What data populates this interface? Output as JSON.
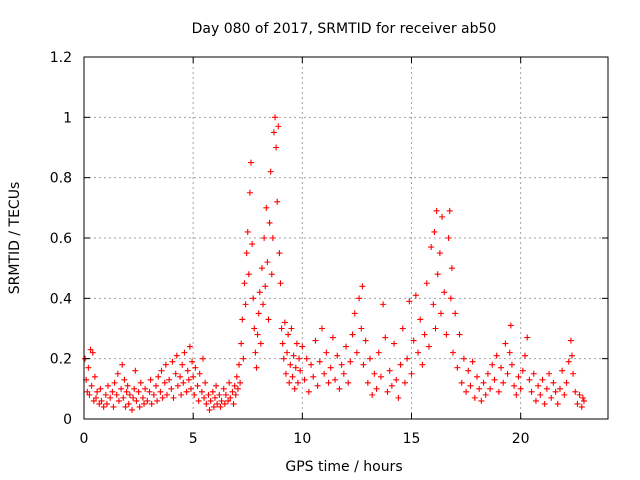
{
  "chart_data": {
    "type": "scatter",
    "title": "Day 080 of 2017, SRMTID for receiver ab50",
    "xlabel": "GPS time / hours",
    "ylabel": "SRMTID / TECUs",
    "xlim": [
      0,
      24
    ],
    "ylim": [
      0,
      1.2
    ],
    "xticks": [
      0,
      5,
      10,
      15,
      20
    ],
    "xtick_labels": [
      "0",
      "5",
      "10",
      "15",
      "20"
    ],
    "yticks": [
      0,
      0.2,
      0.4,
      0.6,
      0.8,
      1.0,
      1.2
    ],
    "ytick_labels": [
      "0",
      "0.2",
      "0.4",
      "0.6",
      "0.8",
      "1",
      "1.2"
    ],
    "grid": true,
    "marker": "+",
    "series": [
      {
        "name": "SRMTID",
        "color": "#ff0000",
        "points": [
          [
            0.05,
            0.2
          ],
          [
            0.1,
            0.13
          ],
          [
            0.15,
            0.09
          ],
          [
            0.2,
            0.17
          ],
          [
            0.25,
            0.08
          ],
          [
            0.3,
            0.23
          ],
          [
            0.35,
            0.11
          ],
          [
            0.4,
            0.22
          ],
          [
            0.45,
            0.06
          ],
          [
            0.5,
            0.14
          ],
          [
            0.55,
            0.07
          ],
          [
            0.6,
            0.09
          ],
          [
            0.7,
            0.05
          ],
          [
            0.75,
            0.1
          ],
          [
            0.8,
            0.06
          ],
          [
            0.9,
            0.04
          ],
          [
            1.0,
            0.08
          ],
          [
            1.05,
            0.05
          ],
          [
            1.1,
            0.11
          ],
          [
            1.2,
            0.07
          ],
          [
            1.3,
            0.09
          ],
          [
            1.35,
            0.04
          ],
          [
            1.4,
            0.12
          ],
          [
            1.5,
            0.08
          ],
          [
            1.55,
            0.15
          ],
          [
            1.6,
            0.06
          ],
          [
            1.7,
            0.1
          ],
          [
            1.75,
            0.18
          ],
          [
            1.8,
            0.07
          ],
          [
            1.85,
            0.13
          ],
          [
            1.9,
            0.04
          ],
          [
            1.95,
            0.09
          ],
          [
            2.0,
            0.11
          ],
          [
            2.05,
            0.05
          ],
          [
            2.1,
            0.08
          ],
          [
            2.2,
            0.03
          ],
          [
            2.25,
            0.07
          ],
          [
            2.3,
            0.1
          ],
          [
            2.35,
            0.16
          ],
          [
            2.4,
            0.06
          ],
          [
            2.5,
            0.09
          ],
          [
            2.55,
            0.04
          ],
          [
            2.6,
            0.12
          ],
          [
            2.7,
            0.07
          ],
          [
            2.75,
            0.05
          ],
          [
            2.8,
            0.1
          ],
          [
            2.9,
            0.06
          ],
          [
            3.0,
            0.09
          ],
          [
            3.05,
            0.13
          ],
          [
            3.1,
            0.05
          ],
          [
            3.2,
            0.08
          ],
          [
            3.3,
            0.11
          ],
          [
            3.35,
            0.06
          ],
          [
            3.4,
            0.14
          ],
          [
            3.5,
            0.09
          ],
          [
            3.55,
            0.16
          ],
          [
            3.6,
            0.07
          ],
          [
            3.7,
            0.12
          ],
          [
            3.75,
            0.18
          ],
          [
            3.8,
            0.08
          ],
          [
            3.9,
            0.13
          ],
          [
            4.0,
            0.1
          ],
          [
            4.05,
            0.19
          ],
          [
            4.1,
            0.07
          ],
          [
            4.2,
            0.15
          ],
          [
            4.25,
            0.21
          ],
          [
            4.3,
            0.11
          ],
          [
            4.4,
            0.14
          ],
          [
            4.45,
            0.08
          ],
          [
            4.5,
            0.18
          ],
          [
            4.55,
            0.12
          ],
          [
            4.6,
            0.22
          ],
          [
            4.7,
            0.09
          ],
          [
            4.75,
            0.16
          ],
          [
            4.8,
            0.13
          ],
          [
            4.85,
            0.24
          ],
          [
            4.9,
            0.1
          ],
          [
            4.95,
            0.19
          ],
          [
            5.0,
            0.14
          ],
          [
            5.05,
            0.08
          ],
          [
            5.1,
            0.17
          ],
          [
            5.2,
            0.11
          ],
          [
            5.25,
            0.06
          ],
          [
            5.3,
            0.15
          ],
          [
            5.4,
            0.09
          ],
          [
            5.45,
            0.2
          ],
          [
            5.5,
            0.07
          ],
          [
            5.55,
            0.12
          ],
          [
            5.6,
            0.05
          ],
          [
            5.7,
            0.08
          ],
          [
            5.75,
            0.03
          ],
          [
            5.8,
            0.06
          ],
          [
            5.9,
            0.09
          ],
          [
            5.95,
            0.04
          ],
          [
            6.0,
            0.07
          ],
          [
            6.05,
            0.11
          ],
          [
            6.1,
            0.05
          ],
          [
            6.2,
            0.08
          ],
          [
            6.25,
            0.04
          ],
          [
            6.3,
            0.06
          ],
          [
            6.4,
            0.1
          ],
          [
            6.45,
            0.05
          ],
          [
            6.5,
            0.08
          ],
          [
            6.6,
            0.06
          ],
          [
            6.65,
            0.12
          ],
          [
            6.7,
            0.07
          ],
          [
            6.8,
            0.09
          ],
          [
            6.85,
            0.05
          ],
          [
            6.9,
            0.11
          ],
          [
            6.95,
            0.08
          ],
          [
            7.0,
            0.14
          ],
          [
            7.05,
            0.1
          ],
          [
            7.1,
            0.18
          ],
          [
            7.15,
            0.12
          ],
          [
            7.2,
            0.25
          ],
          [
            7.25,
            0.33
          ],
          [
            7.3,
            0.2
          ],
          [
            7.35,
            0.45
          ],
          [
            7.4,
            0.38
          ],
          [
            7.45,
            0.55
          ],
          [
            7.5,
            0.62
          ],
          [
            7.55,
            0.48
          ],
          [
            7.6,
            0.75
          ],
          [
            7.65,
            0.85
          ],
          [
            7.7,
            0.58
          ],
          [
            7.75,
            0.4
          ],
          [
            7.8,
            0.3
          ],
          [
            7.85,
            0.22
          ],
          [
            7.9,
            0.17
          ],
          [
            7.95,
            0.28
          ],
          [
            8.0,
            0.35
          ],
          [
            8.05,
            0.42
          ],
          [
            8.1,
            0.25
          ],
          [
            8.15,
            0.5
          ],
          [
            8.2,
            0.38
          ],
          [
            8.25,
            0.6
          ],
          [
            8.3,
            0.44
          ],
          [
            8.35,
            0.7
          ],
          [
            8.4,
            0.52
          ],
          [
            8.45,
            0.33
          ],
          [
            8.5,
            0.65
          ],
          [
            8.55,
            0.82
          ],
          [
            8.6,
            0.48
          ],
          [
            8.65,
            0.6
          ],
          [
            8.7,
            0.95
          ],
          [
            8.75,
            1.0
          ],
          [
            8.8,
            0.9
          ],
          [
            8.85,
            0.72
          ],
          [
            8.9,
            0.97
          ],
          [
            8.95,
            0.55
          ],
          [
            9.0,
            0.45
          ],
          [
            9.05,
            0.3
          ],
          [
            9.1,
            0.25
          ],
          [
            9.15,
            0.2
          ],
          [
            9.2,
            0.32
          ],
          [
            9.25,
            0.15
          ],
          [
            9.3,
            0.22
          ],
          [
            9.35,
            0.28
          ],
          [
            9.4,
            0.12
          ],
          [
            9.45,
            0.18
          ],
          [
            9.5,
            0.3
          ],
          [
            9.55,
            0.14
          ],
          [
            9.6,
            0.21
          ],
          [
            9.65,
            0.1
          ],
          [
            9.7,
            0.17
          ],
          [
            9.75,
            0.25
          ],
          [
            9.8,
            0.12
          ],
          [
            9.85,
            0.2
          ],
          [
            9.9,
            0.16
          ],
          [
            10.0,
            0.24
          ],
          [
            10.1,
            0.13
          ],
          [
            10.2,
            0.2
          ],
          [
            10.3,
            0.09
          ],
          [
            10.4,
            0.18
          ],
          [
            10.5,
            0.14
          ],
          [
            10.6,
            0.26
          ],
          [
            10.7,
            0.11
          ],
          [
            10.8,
            0.19
          ],
          [
            10.9,
            0.3
          ],
          [
            11.0,
            0.15
          ],
          [
            11.1,
            0.22
          ],
          [
            11.2,
            0.12
          ],
          [
            11.3,
            0.17
          ],
          [
            11.4,
            0.27
          ],
          [
            11.5,
            0.13
          ],
          [
            11.6,
            0.21
          ],
          [
            11.7,
            0.1
          ],
          [
            11.8,
            0.18
          ],
          [
            11.9,
            0.15
          ],
          [
            12.0,
            0.24
          ],
          [
            12.1,
            0.12
          ],
          [
            12.2,
            0.19
          ],
          [
            12.3,
            0.28
          ],
          [
            12.4,
            0.35
          ],
          [
            12.5,
            0.22
          ],
          [
            12.6,
            0.4
          ],
          [
            12.7,
            0.3
          ],
          [
            12.75,
            0.44
          ],
          [
            12.8,
            0.18
          ],
          [
            12.9,
            0.26
          ],
          [
            13.0,
            0.12
          ],
          [
            13.1,
            0.2
          ],
          [
            13.2,
            0.08
          ],
          [
            13.3,
            0.15
          ],
          [
            13.4,
            0.1
          ],
          [
            13.5,
            0.22
          ],
          [
            13.6,
            0.14
          ],
          [
            13.7,
            0.38
          ],
          [
            13.8,
            0.27
          ],
          [
            13.9,
            0.09
          ],
          [
            14.0,
            0.16
          ],
          [
            14.1,
            0.11
          ],
          [
            14.2,
            0.25
          ],
          [
            14.3,
            0.13
          ],
          [
            14.4,
            0.07
          ],
          [
            14.5,
            0.18
          ],
          [
            14.6,
            0.3
          ],
          [
            14.7,
            0.12
          ],
          [
            14.8,
            0.2
          ],
          [
            14.9,
            0.39
          ],
          [
            15.0,
            0.15
          ],
          [
            15.1,
            0.26
          ],
          [
            15.2,
            0.41
          ],
          [
            15.3,
            0.22
          ],
          [
            15.4,
            0.33
          ],
          [
            15.5,
            0.18
          ],
          [
            15.6,
            0.28
          ],
          [
            15.7,
            0.45
          ],
          [
            15.8,
            0.24
          ],
          [
            15.9,
            0.57
          ],
          [
            16.0,
            0.38
          ],
          [
            16.05,
            0.62
          ],
          [
            16.1,
            0.3
          ],
          [
            16.15,
            0.69
          ],
          [
            16.2,
            0.48
          ],
          [
            16.3,
            0.55
          ],
          [
            16.35,
            0.35
          ],
          [
            16.4,
            0.67
          ],
          [
            16.5,
            0.42
          ],
          [
            16.6,
            0.28
          ],
          [
            16.7,
            0.6
          ],
          [
            16.75,
            0.69
          ],
          [
            16.8,
            0.4
          ],
          [
            16.85,
            0.5
          ],
          [
            16.9,
            0.22
          ],
          [
            17.0,
            0.35
          ],
          [
            17.1,
            0.17
          ],
          [
            17.2,
            0.28
          ],
          [
            17.3,
            0.12
          ],
          [
            17.4,
            0.2
          ],
          [
            17.5,
            0.09
          ],
          [
            17.6,
            0.16
          ],
          [
            17.7,
            0.11
          ],
          [
            17.8,
            0.19
          ],
          [
            17.9,
            0.07
          ],
          [
            18.0,
            0.14
          ],
          [
            18.1,
            0.1
          ],
          [
            18.2,
            0.06
          ],
          [
            18.3,
            0.12
          ],
          [
            18.4,
            0.08
          ],
          [
            18.5,
            0.15
          ],
          [
            18.6,
            0.1
          ],
          [
            18.7,
            0.18
          ],
          [
            18.8,
            0.13
          ],
          [
            18.9,
            0.21
          ],
          [
            19.0,
            0.09
          ],
          [
            19.1,
            0.17
          ],
          [
            19.2,
            0.12
          ],
          [
            19.3,
            0.25
          ],
          [
            19.4,
            0.15
          ],
          [
            19.5,
            0.22
          ],
          [
            19.55,
            0.31
          ],
          [
            19.6,
            0.18
          ],
          [
            19.7,
            0.11
          ],
          [
            19.8,
            0.08
          ],
          [
            19.9,
            0.14
          ],
          [
            20.0,
            0.1
          ],
          [
            20.1,
            0.16
          ],
          [
            20.2,
            0.21
          ],
          [
            20.3,
            0.27
          ],
          [
            20.4,
            0.13
          ],
          [
            20.5,
            0.09
          ],
          [
            20.6,
            0.15
          ],
          [
            20.7,
            0.06
          ],
          [
            20.8,
            0.11
          ],
          [
            20.9,
            0.08
          ],
          [
            21.0,
            0.13
          ],
          [
            21.1,
            0.05
          ],
          [
            21.2,
            0.1
          ],
          [
            21.3,
            0.15
          ],
          [
            21.4,
            0.07
          ],
          [
            21.5,
            0.12
          ],
          [
            21.6,
            0.09
          ],
          [
            21.7,
            0.05
          ],
          [
            21.8,
            0.1
          ],
          [
            21.9,
            0.16
          ],
          [
            22.0,
            0.08
          ],
          [
            22.1,
            0.12
          ],
          [
            22.2,
            0.19
          ],
          [
            22.3,
            0.26
          ],
          [
            22.35,
            0.21
          ],
          [
            22.4,
            0.15
          ],
          [
            22.5,
            0.09
          ],
          [
            22.6,
            0.05
          ],
          [
            22.7,
            0.08
          ],
          [
            22.8,
            0.04
          ],
          [
            22.85,
            0.07
          ],
          [
            22.9,
            0.06
          ]
        ]
      }
    ]
  }
}
